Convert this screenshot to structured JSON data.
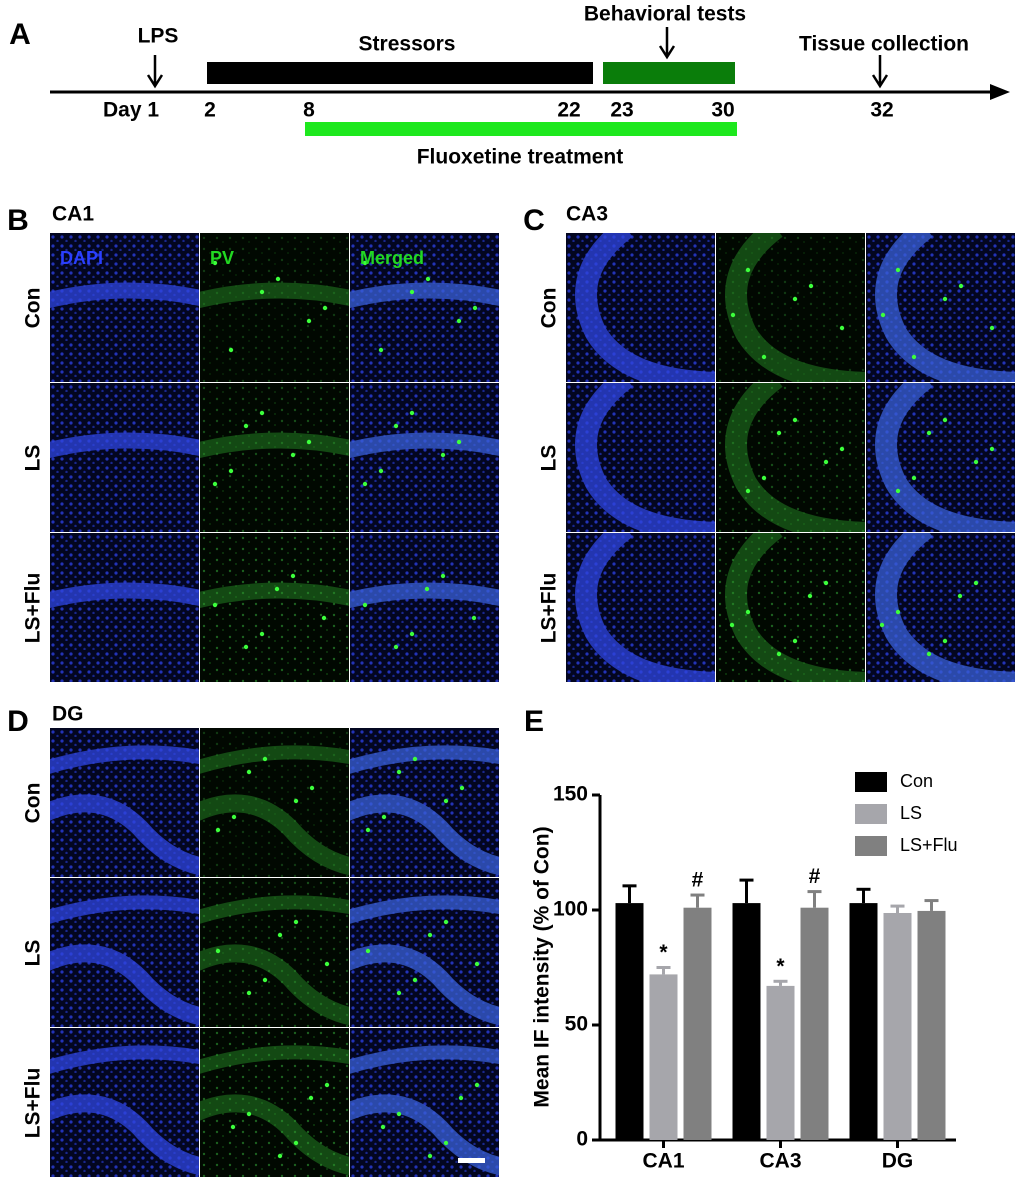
{
  "panel_labels": [
    "A",
    "B",
    "C",
    "D",
    "E"
  ],
  "timeline": {
    "lps": "LPS",
    "stressors": "Stressors",
    "behavioral_tests": "Behavioral tests",
    "tissue_collection": "Tissue collection",
    "fluoxetine": "Fluoxetine treatment",
    "days": [
      "Day 1",
      "2",
      "8",
      "22",
      "23",
      "30",
      "32"
    ]
  },
  "micrographs": {
    "regions": [
      "CA1",
      "CA3",
      "DG"
    ],
    "groups": [
      "Con",
      "LS",
      "LS+Flu"
    ],
    "channels": [
      "DAPI",
      "PV",
      "Merged"
    ]
  },
  "chart_data": {
    "type": "bar",
    "ylabel": "Mean IF intensity (% of Con)",
    "categories": [
      "CA1",
      "CA3",
      "DG"
    ],
    "series": [
      {
        "name": "Con",
        "color": "#000000",
        "values": [
          103,
          103,
          103
        ],
        "errors": [
          7.5,
          10,
          6
        ]
      },
      {
        "name": "LS",
        "color": "#a6a6ab",
        "values": [
          72,
          67,
          98.7
        ],
        "errors": [
          3,
          2,
          3
        ],
        "annotations": [
          "*",
          "*",
          null
        ]
      },
      {
        "name": "LS+Flu",
        "color": "#808080",
        "values": [
          101,
          101,
          99.6
        ],
        "errors": [
          5.5,
          7,
          4.5
        ],
        "annotations": [
          "#",
          "#",
          null
        ]
      }
    ],
    "ylim": [
      0,
      150
    ],
    "yticks": [
      0,
      50,
      100,
      150
    ],
    "legend": "upper right"
  }
}
